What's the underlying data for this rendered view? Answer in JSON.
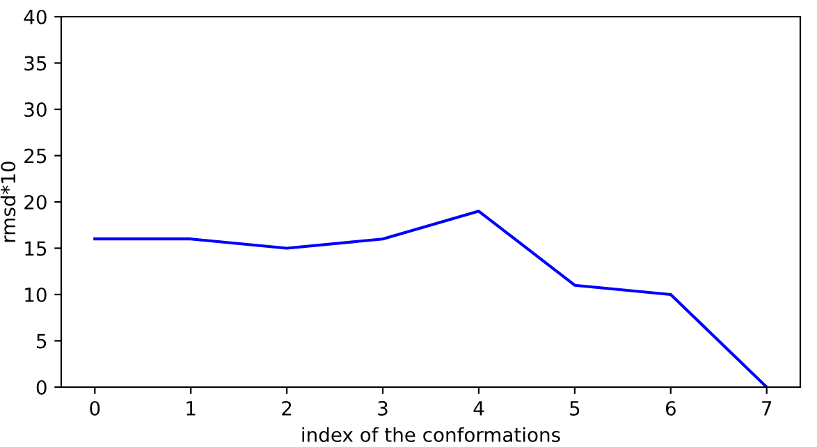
{
  "chart_data": {
    "type": "line",
    "xlabel": "index of the conformations",
    "ylabel": "rmsd*10",
    "x": [
      0,
      1,
      2,
      3,
      4,
      5,
      6,
      7
    ],
    "series": [
      {
        "color": "#0000ff",
        "values": [
          16,
          16,
          15,
          16,
          19,
          11,
          10,
          0
        ]
      }
    ],
    "xlim": [
      -0.35,
      7.35
    ],
    "xticks": [
      0,
      1,
      2,
      3,
      4,
      5,
      6,
      7
    ],
    "ylim": [
      0,
      40
    ],
    "yticks": [
      0,
      5,
      10,
      15,
      20,
      25,
      30,
      35,
      40
    ],
    "grid": false,
    "legend": false,
    "marker": "none",
    "line_style": "solid"
  }
}
